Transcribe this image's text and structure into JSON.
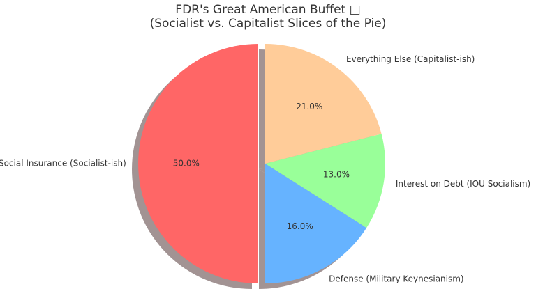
{
  "chart_data": {
    "type": "pie",
    "title_line1": "FDR's Great American Buffet □",
    "title_line2": "(Socialist vs. Capitalist Slices of the Pie)",
    "slices": [
      {
        "label": "Social Insurance (Socialist-ish)",
        "value": 50.0,
        "pct_label": "50.0%",
        "color": "#ff6666",
        "explode": true
      },
      {
        "label": "Defense (Military Keynesianism)",
        "value": 16.0,
        "pct_label": "16.0%",
        "color": "#66b3ff",
        "explode": false
      },
      {
        "label": "Interest on Debt (IOU Socialism)",
        "value": 13.0,
        "pct_label": "13.0%",
        "color": "#99ff99",
        "explode": false
      },
      {
        "label": "Everything Else (Capitalist-ish)",
        "value": 21.0,
        "pct_label": "21.0%",
        "color": "#ffcc99",
        "explode": false
      }
    ],
    "start_angle": 90,
    "direction": "counterclockwise",
    "shadow": true,
    "legend": "none"
  }
}
